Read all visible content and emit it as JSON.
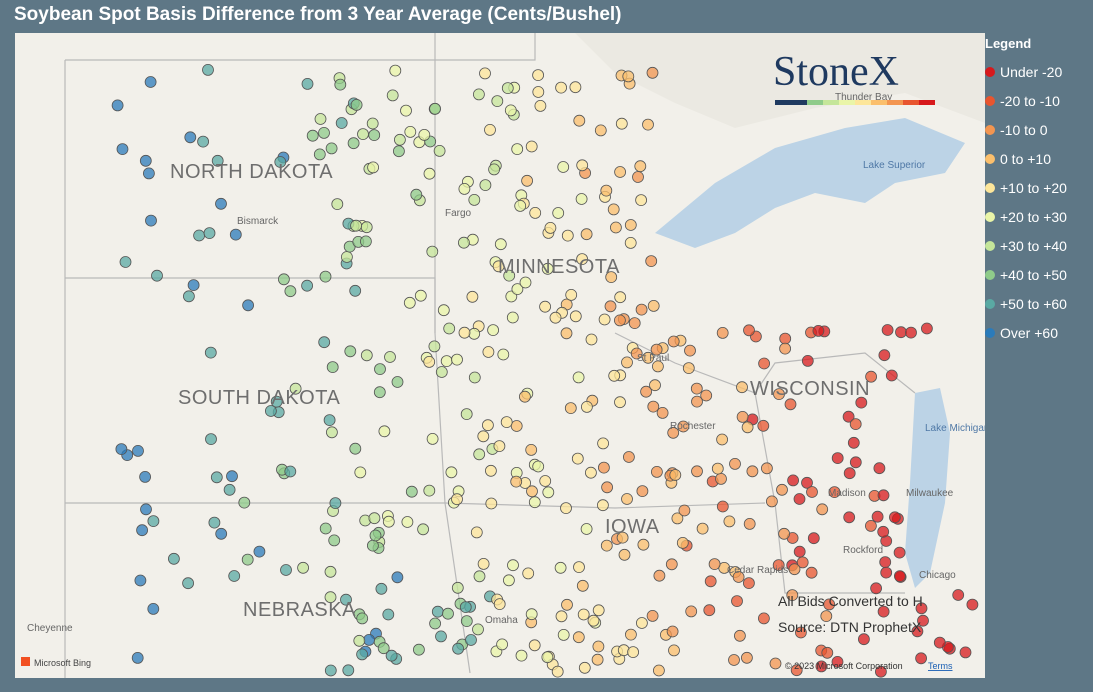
{
  "header": {
    "title": "Soybean Spot Basis Difference from 3 Year Average (Cents/Bushel)"
  },
  "legend": {
    "title": "Legend",
    "items": [
      {
        "label": "Under -20",
        "color": "#d7191c"
      },
      {
        "label": "-20 to -10",
        "color": "#e8552f"
      },
      {
        "label": "-10 to 0",
        "color": "#f39550"
      },
      {
        "label": "0 to +10",
        "color": "#fbbf6c"
      },
      {
        "label": "+10 to +20",
        "color": "#fde69a"
      },
      {
        "label": "+20 to +30",
        "color": "#eaf5a8"
      },
      {
        "label": "+30 to +40",
        "color": "#c5e69a"
      },
      {
        "label": "+40 to +50",
        "color": "#8fcb8a"
      },
      {
        "label": "+50 to +60",
        "color": "#5aa9a3"
      },
      {
        "label": "Over +60",
        "color": "#2b7bba"
      }
    ]
  },
  "map": {
    "states": [
      "NORTH DAKOTA",
      "MINNESOTA",
      "SOUTH DAKOTA",
      "WISCONSIN",
      "NEBRASKA",
      "IOWA"
    ],
    "cities": [
      "Bismarck",
      "Fargo",
      "St Paul",
      "Rochester",
      "Madison",
      "Milwaukee",
      "Rockford",
      "Chicago",
      "Cedar Rapids",
      "Omaha",
      "Cheyenne",
      "Thunder Bay"
    ],
    "water": [
      "Lake Superior",
      "Lake Michigan"
    ],
    "logo": "StoneX",
    "notes": [
      "All Bids Converted to H",
      "Source: DTN ProphetX"
    ],
    "attribution": {
      "brand": "Microsoft Bing",
      "copyright": "© 2023 Microsoft Corporation",
      "terms": "Terms"
    }
  }
}
